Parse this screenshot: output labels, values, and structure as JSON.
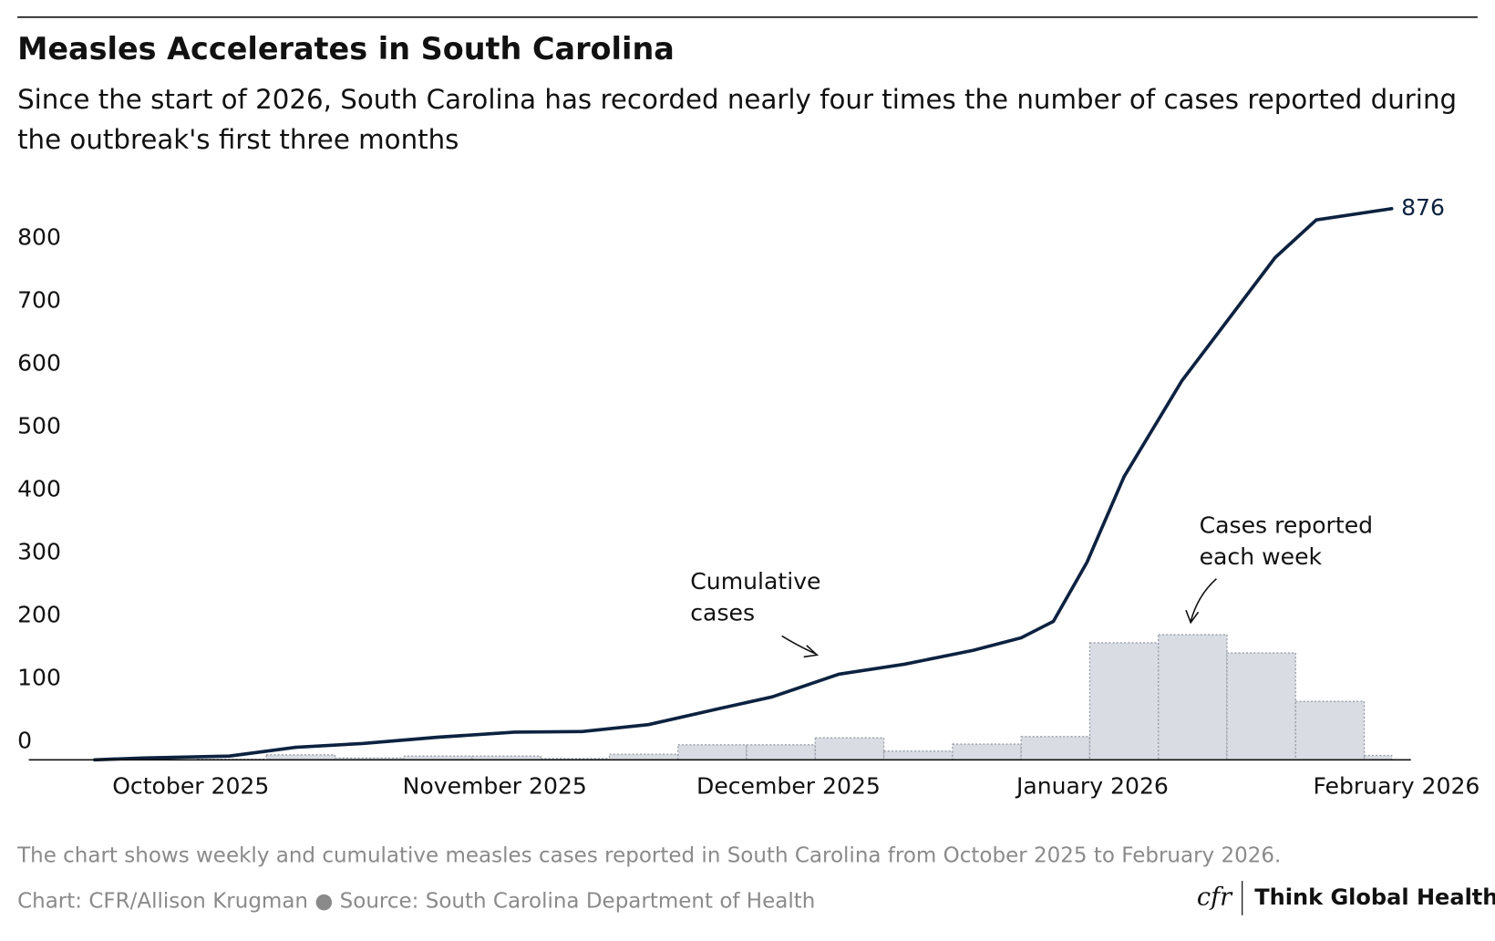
{
  "title": "Measles Accelerates in South Carolina",
  "subtitle": "Since the start of 2026, South Carolina has recorded nearly four times the number of cases reported during the outbreak's first three months",
  "chart_data": {
    "type": "line",
    "xlim": [
      -2.36,
      17.78
    ],
    "xticks": [
      {
        "value": 0,
        "label": "October 2025"
      },
      {
        "value": 4.43,
        "label": "November 2025"
      },
      {
        "value": 8.71,
        "label": "December 2025"
      },
      {
        "value": 13.14,
        "label": "January 2026"
      },
      {
        "value": 17.57,
        "label": "February 2026"
      }
    ],
    "ylim": [
      0,
      900
    ],
    "yticks": [
      0,
      100,
      200,
      300,
      400,
      500,
      600,
      700,
      800
    ],
    "series": [
      {
        "name": "Cases reported each week",
        "type": "histogram",
        "color": "#d9dce3",
        "bins": [
          0.1,
          1.1,
          2.1,
          3.1,
          4.1,
          5.1,
          6.1,
          7.1,
          8.1,
          9.1,
          10.1,
          11.1,
          12.1,
          13.1,
          14.1,
          15.1,
          16.1,
          17.1,
          17.5
        ],
        "values": [
          1,
          8,
          3,
          6,
          6,
          2,
          9,
          24,
          24,
          35,
          14,
          25,
          37,
          186,
          199,
          170,
          93,
          7
        ]
      },
      {
        "name": "Cumulative cases",
        "type": "line",
        "color": "#0d2240",
        "x": [
          -1.4,
          -0.7,
          0.56,
          1.53,
          2.5,
          3.6,
          4.72,
          5.7,
          6.67,
          7.64,
          8.47,
          9.44,
          10.4,
          11.4,
          12.1,
          12.57,
          13.06,
          13.6,
          14.44,
          15.28,
          15.8,
          16.4,
          17.5
        ],
        "values": [
          0,
          3,
          6,
          20,
          26,
          36,
          44,
          45,
          56,
          80,
          100,
          136,
          152,
          174,
          194,
          220,
          314,
          450,
          602,
          723,
          798,
          858,
          876
        ]
      }
    ]
  },
  "note": "The chart shows weekly and cumulative measles cases reported in South Carolina from October 2025 to February 2026.",
  "credit": "Chart: CFR/Allison Krugman ● Source: South Carolina Department of Health",
  "logo": {
    "mark": "cfr",
    "name": "Think Global Health"
  }
}
